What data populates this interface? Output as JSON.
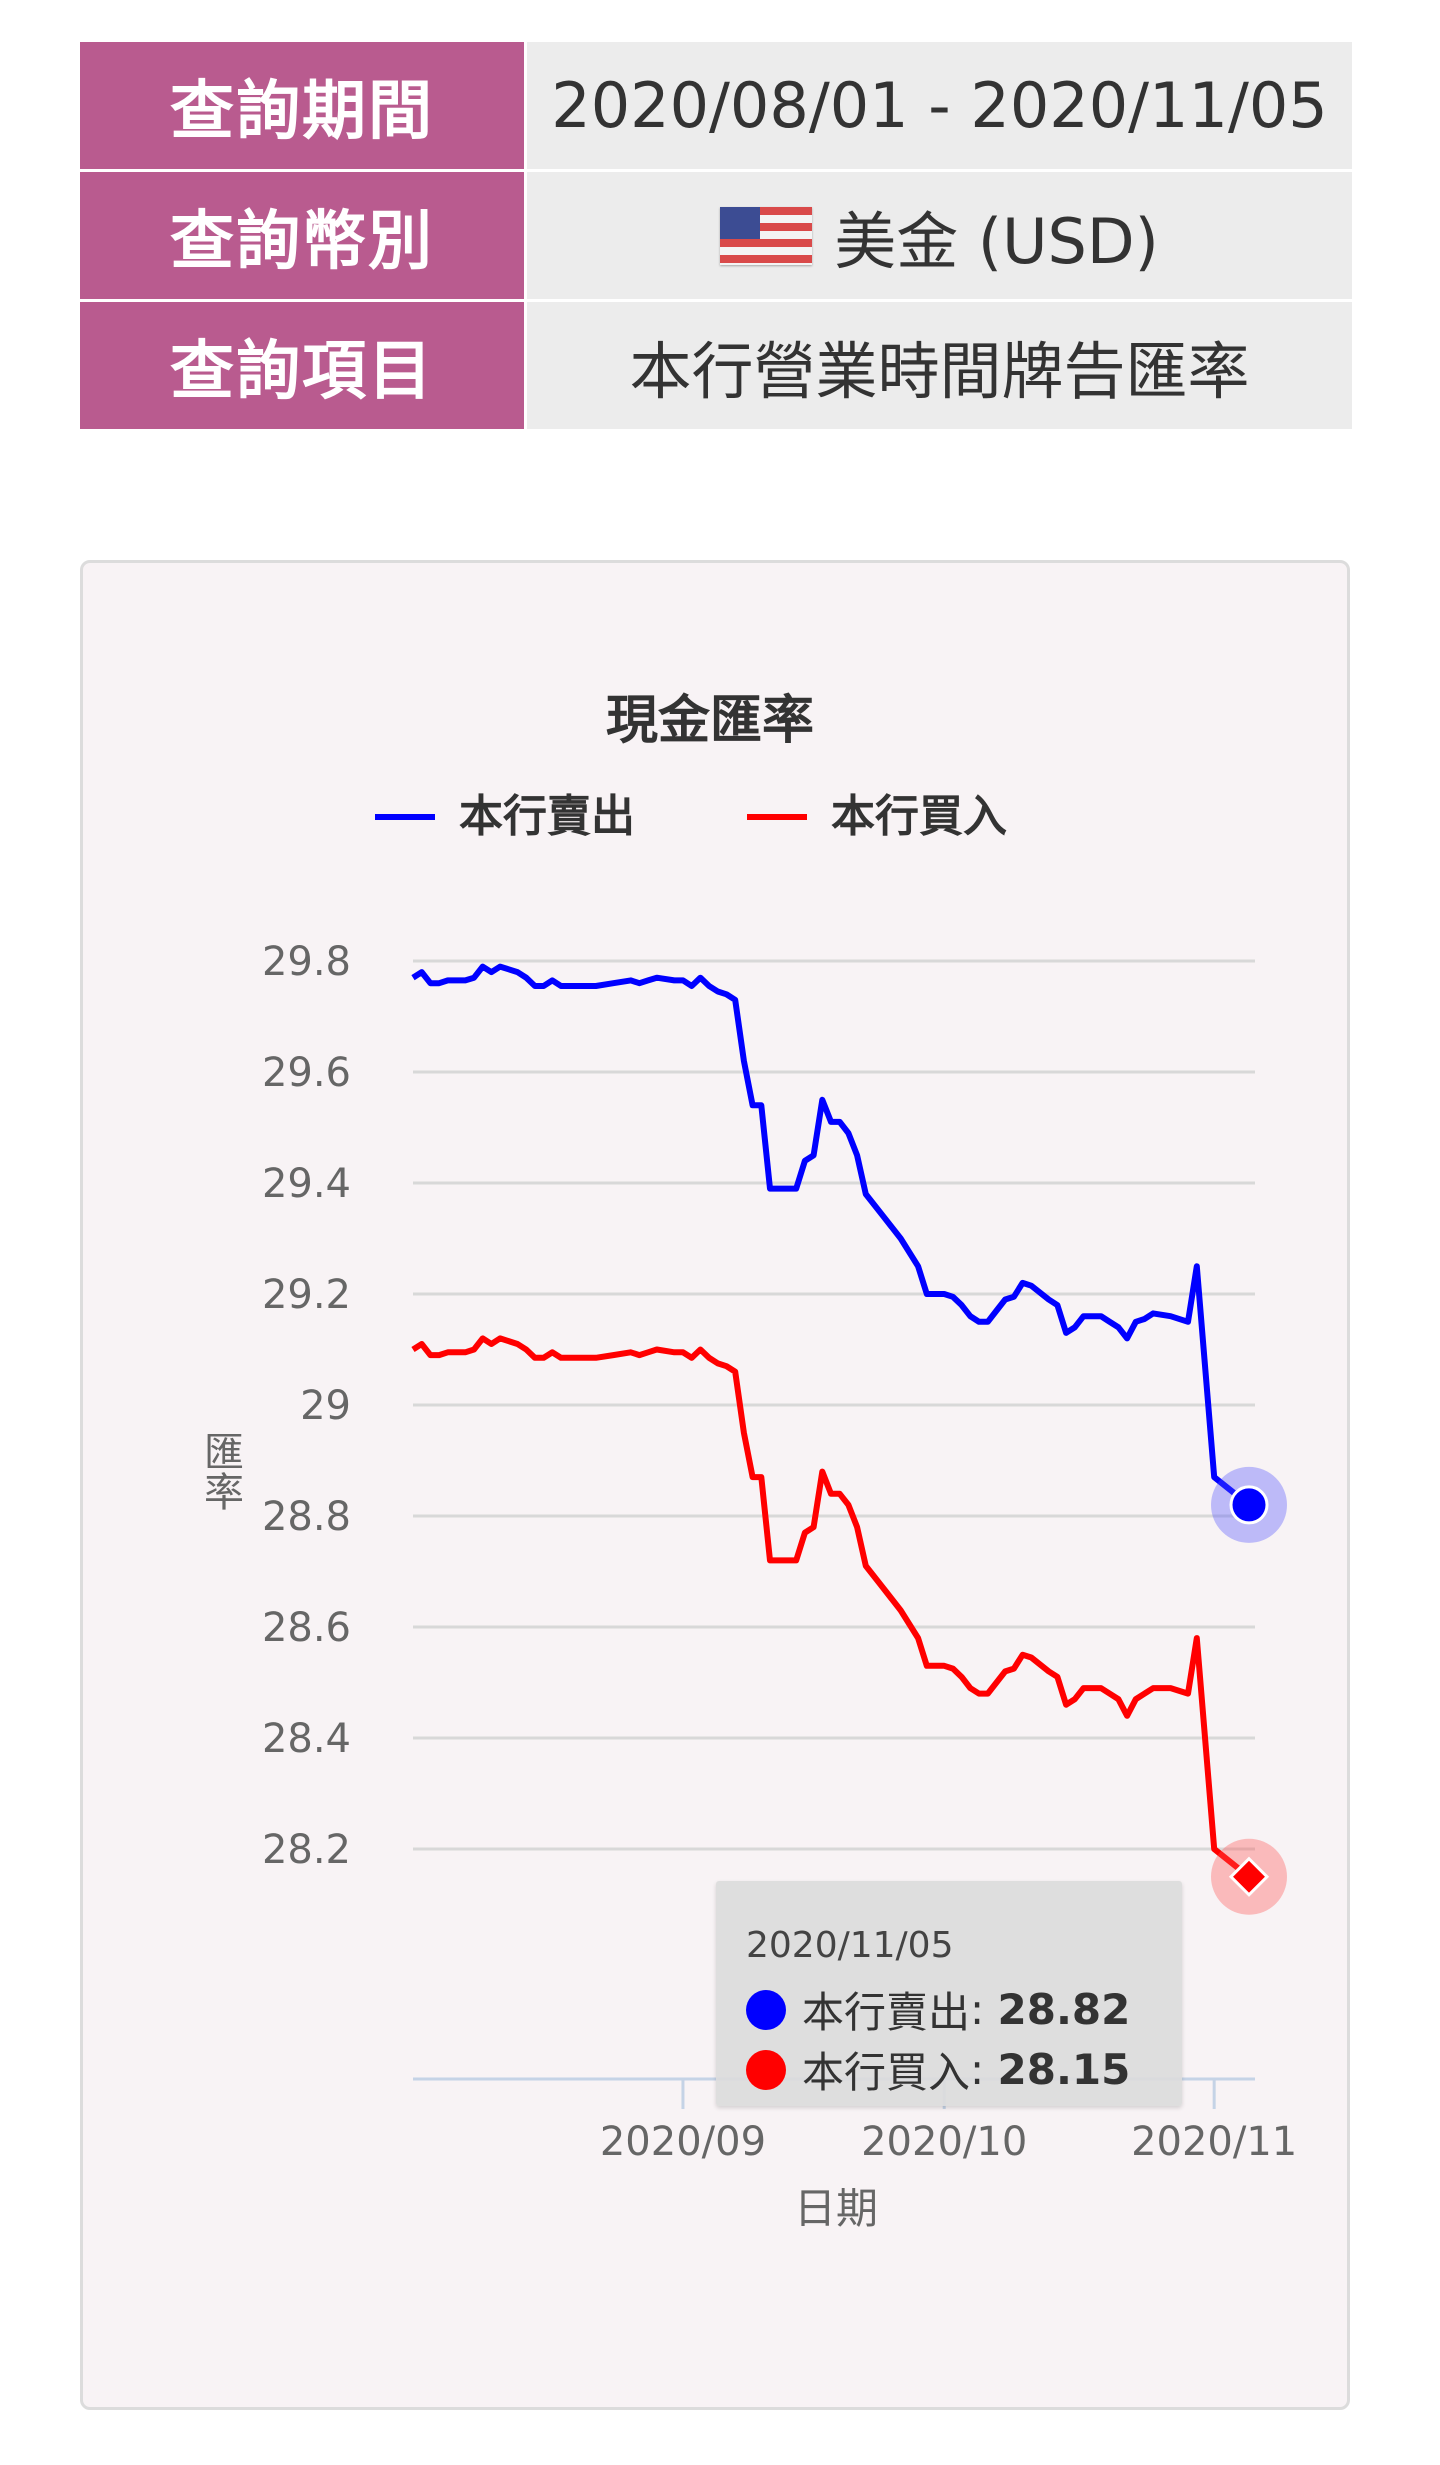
{
  "query": {
    "period_label": "查詢期間",
    "period_value": "2020/08/01 - 2020/11/05",
    "currency_label": "查詢幣別",
    "currency_value": "美金 (USD)",
    "currency_flag_icon": "us-flag-icon",
    "item_label": "查詢項目",
    "item_value": "本行營業時間牌告匯率"
  },
  "colors": {
    "label_bg": "#b95b8f",
    "sell": "#0000ff",
    "buy": "#ff0000"
  },
  "tooltip": {
    "date": "2020/11/05",
    "sell_name": "本行賣出",
    "sell_value": "28.82",
    "buy_name": "本行買入",
    "buy_value": "28.15"
  },
  "chart_data": {
    "type": "line",
    "title": "現金匯率",
    "xlabel": "日期",
    "ylabel": "匯率",
    "ylim": [
      28.05,
      29.8
    ],
    "yticks": [
      29.8,
      29.6,
      29.4,
      29.2,
      29,
      28.8,
      28.6,
      28.4,
      28.2
    ],
    "ytick_labels": [
      "29.8",
      "29.6",
      "29.4",
      "29.2",
      "29",
      "28.8",
      "28.6",
      "28.4",
      "28.2"
    ],
    "xlim": [
      "2020-08-01",
      "2020-11-05"
    ],
    "xticks": [
      "2020-09-01",
      "2020-10-01",
      "2020-11-01"
    ],
    "xtick_labels": [
      "2020/09",
      "2020/10",
      "2020/11"
    ],
    "grid": true,
    "legend_position": "top",
    "series": [
      {
        "name": "本行賣出",
        "color": "#0000ff",
        "points": [
          [
            "2020-08-01",
            29.77
          ],
          [
            "2020-08-02",
            29.78
          ],
          [
            "2020-08-03",
            29.76
          ],
          [
            "2020-08-04",
            29.76
          ],
          [
            "2020-08-05",
            29.765
          ],
          [
            "2020-08-07",
            29.765
          ],
          [
            "2020-08-08",
            29.77
          ],
          [
            "2020-08-09",
            29.79
          ],
          [
            "2020-08-10",
            29.78
          ],
          [
            "2020-08-11",
            29.79
          ],
          [
            "2020-08-13",
            29.78
          ],
          [
            "2020-08-14",
            29.77
          ],
          [
            "2020-08-15",
            29.755
          ],
          [
            "2020-08-16",
            29.755
          ],
          [
            "2020-08-17",
            29.765
          ],
          [
            "2020-08-18",
            29.755
          ],
          [
            "2020-08-20",
            29.755
          ],
          [
            "2020-08-22",
            29.755
          ],
          [
            "2020-08-24",
            29.76
          ],
          [
            "2020-08-26",
            29.765
          ],
          [
            "2020-08-27",
            29.76
          ],
          [
            "2020-08-28",
            29.765
          ],
          [
            "2020-08-29",
            29.77
          ],
          [
            "2020-08-31",
            29.765
          ],
          [
            "2020-09-01",
            29.765
          ],
          [
            "2020-09-02",
            29.755
          ],
          [
            "2020-09-03",
            29.77
          ],
          [
            "2020-09-04",
            29.755
          ],
          [
            "2020-09-05",
            29.745
          ],
          [
            "2020-09-06",
            29.74
          ],
          [
            "2020-09-07",
            29.73
          ],
          [
            "2020-09-08",
            29.62
          ],
          [
            "2020-09-09",
            29.54
          ],
          [
            "2020-09-10",
            29.54
          ],
          [
            "2020-09-11",
            29.39
          ],
          [
            "2020-09-12",
            29.39
          ],
          [
            "2020-09-14",
            29.39
          ],
          [
            "2020-09-15",
            29.44
          ],
          [
            "2020-09-16",
            29.45
          ],
          [
            "2020-09-17",
            29.55
          ],
          [
            "2020-09-18",
            29.51
          ],
          [
            "2020-09-19",
            29.51
          ],
          [
            "2020-09-20",
            29.49
          ],
          [
            "2020-09-21",
            29.45
          ],
          [
            "2020-09-22",
            29.38
          ],
          [
            "2020-09-24",
            29.34
          ],
          [
            "2020-09-26",
            29.3
          ],
          [
            "2020-09-28",
            29.25
          ],
          [
            "2020-09-29",
            29.2
          ],
          [
            "2020-09-30",
            29.2
          ],
          [
            "2020-10-01",
            29.2
          ],
          [
            "2020-10-02",
            29.195
          ],
          [
            "2020-10-03",
            29.18
          ],
          [
            "2020-10-04",
            29.16
          ],
          [
            "2020-10-05",
            29.15
          ],
          [
            "2020-10-06",
            29.15
          ],
          [
            "2020-10-07",
            29.17
          ],
          [
            "2020-10-08",
            29.19
          ],
          [
            "2020-10-09",
            29.195
          ],
          [
            "2020-10-10",
            29.22
          ],
          [
            "2020-10-11",
            29.215
          ],
          [
            "2020-10-13",
            29.19
          ],
          [
            "2020-10-14",
            29.18
          ],
          [
            "2020-10-15",
            29.13
          ],
          [
            "2020-10-16",
            29.14
          ],
          [
            "2020-10-17",
            29.16
          ],
          [
            "2020-10-19",
            29.16
          ],
          [
            "2020-10-20",
            29.15
          ],
          [
            "2020-10-21",
            29.14
          ],
          [
            "2020-10-22",
            29.12
          ],
          [
            "2020-10-23",
            29.15
          ],
          [
            "2020-10-24",
            29.155
          ],
          [
            "2020-10-25",
            29.165
          ],
          [
            "2020-10-27",
            29.16
          ],
          [
            "2020-10-29",
            29.15
          ],
          [
            "2020-10-30",
            29.25
          ],
          [
            "2020-11-01",
            28.87
          ],
          [
            "2020-11-05",
            28.82
          ]
        ]
      },
      {
        "name": "本行買入",
        "color": "#ff0000",
        "points": [
          [
            "2020-08-01",
            29.1
          ],
          [
            "2020-08-02",
            29.11
          ],
          [
            "2020-08-03",
            29.09
          ],
          [
            "2020-08-04",
            29.09
          ],
          [
            "2020-08-05",
            29.095
          ],
          [
            "2020-08-07",
            29.095
          ],
          [
            "2020-08-08",
            29.1
          ],
          [
            "2020-08-09",
            29.12
          ],
          [
            "2020-08-10",
            29.11
          ],
          [
            "2020-08-11",
            29.12
          ],
          [
            "2020-08-13",
            29.11
          ],
          [
            "2020-08-14",
            29.1
          ],
          [
            "2020-08-15",
            29.085
          ],
          [
            "2020-08-16",
            29.085
          ],
          [
            "2020-08-17",
            29.095
          ],
          [
            "2020-08-18",
            29.085
          ],
          [
            "2020-08-20",
            29.085
          ],
          [
            "2020-08-22",
            29.085
          ],
          [
            "2020-08-24",
            29.09
          ],
          [
            "2020-08-26",
            29.095
          ],
          [
            "2020-08-27",
            29.09
          ],
          [
            "2020-08-28",
            29.095
          ],
          [
            "2020-08-29",
            29.1
          ],
          [
            "2020-08-31",
            29.095
          ],
          [
            "2020-09-01",
            29.095
          ],
          [
            "2020-09-02",
            29.085
          ],
          [
            "2020-09-03",
            29.1
          ],
          [
            "2020-09-04",
            29.085
          ],
          [
            "2020-09-05",
            29.075
          ],
          [
            "2020-09-06",
            29.07
          ],
          [
            "2020-09-07",
            29.06
          ],
          [
            "2020-09-08",
            28.95
          ],
          [
            "2020-09-09",
            28.87
          ],
          [
            "2020-09-10",
            28.87
          ],
          [
            "2020-09-11",
            28.72
          ],
          [
            "2020-09-12",
            28.72
          ],
          [
            "2020-09-14",
            28.72
          ],
          [
            "2020-09-15",
            28.77
          ],
          [
            "2020-09-16",
            28.78
          ],
          [
            "2020-09-17",
            28.88
          ],
          [
            "2020-09-18",
            28.84
          ],
          [
            "2020-09-19",
            28.84
          ],
          [
            "2020-09-20",
            28.82
          ],
          [
            "2020-09-21",
            28.78
          ],
          [
            "2020-09-22",
            28.71
          ],
          [
            "2020-09-24",
            28.67
          ],
          [
            "2020-09-26",
            28.63
          ],
          [
            "2020-09-28",
            28.58
          ],
          [
            "2020-09-29",
            28.53
          ],
          [
            "2020-09-30",
            28.53
          ],
          [
            "2020-10-01",
            28.53
          ],
          [
            "2020-10-02",
            28.525
          ],
          [
            "2020-10-03",
            28.51
          ],
          [
            "2020-10-04",
            28.49
          ],
          [
            "2020-10-05",
            28.48
          ],
          [
            "2020-10-06",
            28.48
          ],
          [
            "2020-10-07",
            28.5
          ],
          [
            "2020-10-08",
            28.52
          ],
          [
            "2020-10-09",
            28.525
          ],
          [
            "2020-10-10",
            28.55
          ],
          [
            "2020-10-11",
            28.545
          ],
          [
            "2020-10-13",
            28.52
          ],
          [
            "2020-10-14",
            28.51
          ],
          [
            "2020-10-15",
            28.46
          ],
          [
            "2020-10-16",
            28.47
          ],
          [
            "2020-10-17",
            28.49
          ],
          [
            "2020-10-19",
            28.49
          ],
          [
            "2020-10-20",
            28.48
          ],
          [
            "2020-10-21",
            28.47
          ],
          [
            "2020-10-22",
            28.44
          ],
          [
            "2020-10-23",
            28.47
          ],
          [
            "2020-10-24",
            28.48
          ],
          [
            "2020-10-25",
            28.49
          ],
          [
            "2020-10-27",
            28.49
          ],
          [
            "2020-10-29",
            28.48
          ],
          [
            "2020-10-30",
            28.58
          ],
          [
            "2020-11-01",
            28.2
          ],
          [
            "2020-11-05",
            28.15
          ]
        ]
      }
    ]
  }
}
